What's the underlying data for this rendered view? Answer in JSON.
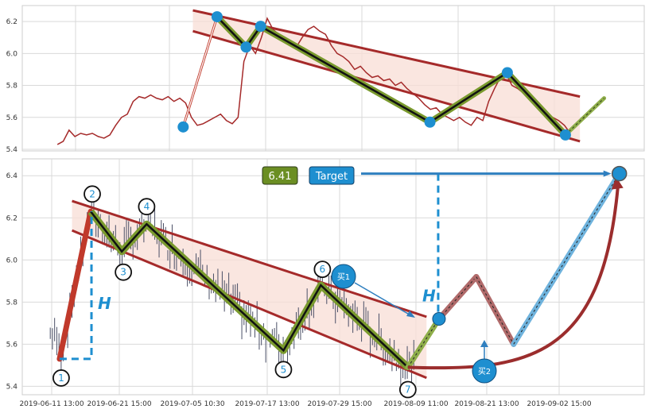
{
  "chart_data": [
    {
      "type": "line",
      "panel": "top",
      "ylim": [
        5.39,
        6.3
      ],
      "yticks": [
        "5.4",
        "5.6",
        "5.8",
        "6.0",
        "6.2"
      ],
      "grid": true,
      "price": [
        5.43,
        5.45,
        5.52,
        5.48,
        5.5,
        5.49,
        5.5,
        5.48,
        5.47,
        5.49,
        5.55,
        5.6,
        5.62,
        5.7,
        5.73,
        5.72,
        5.74,
        5.72,
        5.71,
        5.73,
        5.7,
        5.72,
        5.69,
        5.6,
        5.55,
        5.56,
        5.58,
        5.6,
        5.62,
        5.58,
        5.56,
        5.6,
        5.95,
        6.05,
        6.0,
        6.1,
        6.22,
        6.15,
        6.12,
        6.08,
        6.05,
        6.04,
        6.1,
        6.15,
        6.17,
        6.14,
        6.12,
        6.05,
        6.0,
        5.98,
        5.95,
        5.9,
        5.92,
        5.88,
        5.85,
        5.86,
        5.83,
        5.84,
        5.8,
        5.82,
        5.78,
        5.75,
        5.72,
        5.68,
        5.65,
        5.66,
        5.62,
        5.6,
        5.58,
        5.6,
        5.57,
        5.55,
        5.6,
        5.58,
        5.7,
        5.78,
        5.85,
        5.87,
        5.8,
        5.78,
        5.75,
        5.72,
        5.7,
        5.65,
        5.62,
        5.6,
        5.58,
        5.55,
        5.5
      ],
      "pivots": [
        {
          "t": 28,
          "p": 5.54
        },
        {
          "t": 35,
          "p": 6.23
        },
        {
          "t": 41,
          "p": 6.04
        },
        {
          "t": 44,
          "p": 6.17
        },
        {
          "t": 79,
          "p": 5.57
        },
        {
          "t": 95,
          "p": 5.88
        },
        {
          "t": 107,
          "p": 5.49
        }
      ],
      "channel_upper": [
        {
          "t": 30,
          "p": 6.27
        },
        {
          "t": 110,
          "p": 5.73
        }
      ],
      "channel_lower": [
        {
          "t": 30,
          "p": 6.14
        },
        {
          "t": 110,
          "p": 5.45
        }
      ],
      "projection_end": {
        "t": 115,
        "p": 5.72
      }
    },
    {
      "type": "line",
      "panel": "bottom",
      "ylim": [
        5.36,
        6.48
      ],
      "yticks": [
        "5.4",
        "5.6",
        "5.8",
        "6.0",
        "6.2",
        "6.4"
      ],
      "xticks": [
        "2019-06-11 13:00",
        "2019-06-21 15:00",
        "2019-07-05 10:30",
        "2019-07-17 13:00",
        "2019-07-29 15:00",
        "2019-08-09 11:00",
        "2019-08-21 13:00",
        "2019-09-02 15:00"
      ],
      "grid": true,
      "pivots": [
        {
          "label": "1",
          "t": 6,
          "p": 5.53
        },
        {
          "label": "2",
          "t": 11,
          "p": 6.23
        },
        {
          "label": "3",
          "t": 16,
          "p": 6.04
        },
        {
          "label": "4",
          "t": 20,
          "p": 6.17
        },
        {
          "label": "5",
          "t": 42,
          "p": 5.57
        },
        {
          "label": "6",
          "t": 48,
          "p": 5.88
        },
        {
          "label": "7",
          "t": 62,
          "p": 5.49
        }
      ],
      "channel_upper": [
        {
          "t": 8,
          "p": 6.28
        },
        {
          "t": 65,
          "p": 5.73
        }
      ],
      "channel_lower": [
        {
          "t": 8,
          "p": 6.14
        },
        {
          "t": 65,
          "p": 5.44
        }
      ],
      "projection": [
        {
          "t": 67,
          "p": 5.72
        },
        {
          "t": 73,
          "p": 5.92
        },
        {
          "t": 79,
          "p": 5.6
        },
        {
          "t": 96,
          "p": 6.41
        }
      ],
      "H_height": 0.7,
      "target_value": 6.41,
      "annotations": {
        "target_value_label": "6.41",
        "target_label": "Target",
        "height_label": "H",
        "buy1": "买1",
        "buy2": "买2"
      }
    }
  ],
  "colors": {
    "price_top": "#a52a2a",
    "price_bottom": "#4a4f66",
    "channel": "#a52a2a",
    "channel_fill": "#f8ded6",
    "zigzag": "#7a9a2e",
    "pivot": "#1e8fd0",
    "target_box": "#6b8e23",
    "arrow": "#2f7fbf"
  }
}
